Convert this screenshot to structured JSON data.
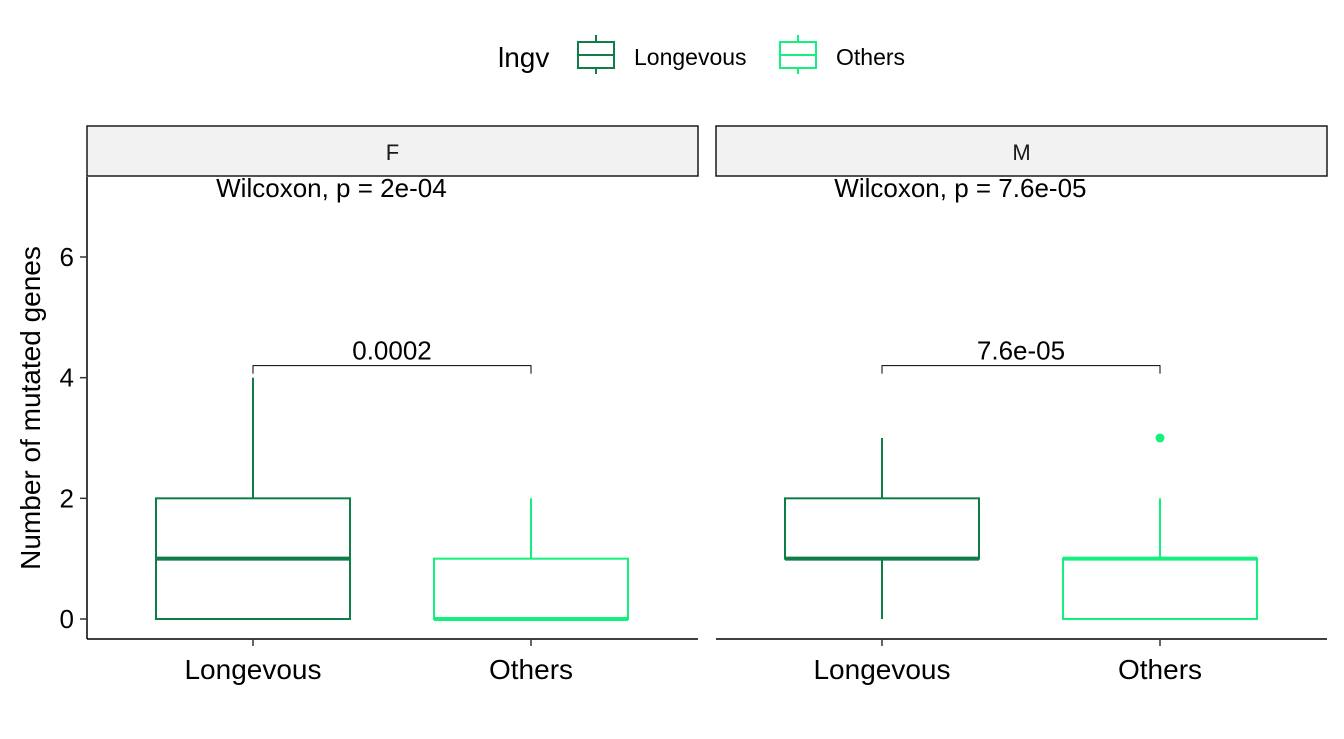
{
  "chart_data": {
    "type": "boxplot",
    "ylabel": "Number of mutated genes",
    "ylim": [
      -0.3,
      7.3
    ],
    "yticks": [
      0,
      2,
      4,
      6
    ],
    "categories": [
      "Longevous",
      "Others"
    ],
    "legend": {
      "title": "lngv",
      "placement": "top",
      "entries": [
        {
          "name": "Longevous",
          "color": "#0E7D48"
        },
        {
          "name": "Others",
          "color": "#14F07E"
        }
      ]
    },
    "facets": [
      {
        "strip": "F",
        "global_test": "Wilcoxon, p = 2e-04",
        "pairwise_p": "0.0002",
        "bracket_y": 4.2,
        "boxes": [
          {
            "group": "Longevous",
            "min": 0,
            "q1": 0,
            "median": 1,
            "q3": 2,
            "max": 4,
            "outliers": []
          },
          {
            "group": "Others",
            "min": 0,
            "q1": 0,
            "median": 0,
            "q3": 1,
            "max": 2,
            "outliers": []
          }
        ]
      },
      {
        "strip": "M",
        "global_test": "Wilcoxon, p = 7.6e-05",
        "pairwise_p": "7.6e-05",
        "bracket_y": 4.2,
        "boxes": [
          {
            "group": "Longevous",
            "min": 0,
            "q1": 1,
            "median": 1,
            "q3": 2,
            "max": 3,
            "outliers": []
          },
          {
            "group": "Others",
            "min": 0,
            "q1": 0,
            "median": 1,
            "q3": 1,
            "max": 2,
            "outliers": [
              3
            ]
          }
        ]
      }
    ]
  }
}
